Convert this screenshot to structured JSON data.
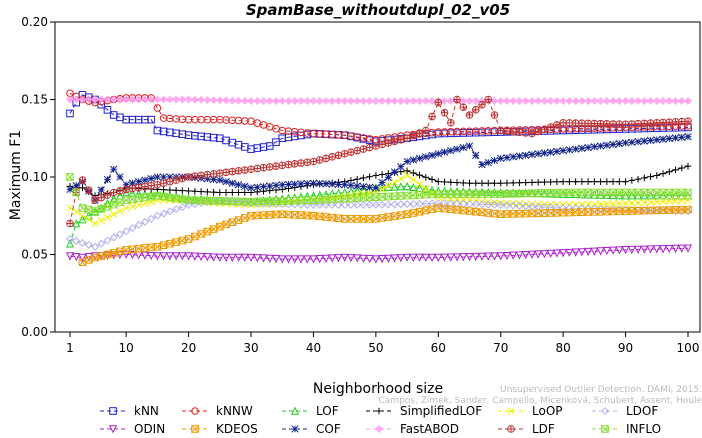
{
  "chart_data": {
    "type": "line",
    "title": "SpamBase_withoutdupl_02_v05",
    "xlabel": "Neighborhood size",
    "ylabel": "Maximum F1",
    "xlim": [
      1,
      100
    ],
    "ylim": [
      0,
      0.2
    ],
    "x_ticks": [
      "1",
      "10",
      "20",
      "30",
      "40",
      "50",
      "60",
      "70",
      "80",
      "90",
      "100"
    ],
    "y_ticks": [
      "0.00",
      "0.05",
      "0.10",
      "0.15",
      "0.20"
    ],
    "watermark_line1": "Unsupervised Outlier Detection. DAMI, 2015.",
    "watermark_line2": "Campos, Zimek, Sander, Campello, Micenková, Schubert, Assent, Houle",
    "legend_placement": "bottom",
    "grid": false,
    "series": [
      {
        "name": "kNN",
        "color": "#2222cc",
        "marker": "square",
        "points": [
          [
            1,
            0.141
          ],
          [
            2,
            0.148
          ],
          [
            3,
            0.153
          ],
          [
            5,
            0.15
          ],
          [
            8,
            0.14
          ],
          [
            10,
            0.137
          ],
          [
            14,
            0.137
          ],
          [
            15,
            0.13
          ],
          [
            20,
            0.127
          ],
          [
            25,
            0.125
          ],
          [
            30,
            0.118
          ],
          [
            33,
            0.12
          ],
          [
            35,
            0.125
          ],
          [
            40,
            0.128
          ],
          [
            45,
            0.127
          ],
          [
            50,
            0.123
          ],
          [
            55,
            0.125
          ],
          [
            60,
            0.128
          ],
          [
            70,
            0.129
          ],
          [
            80,
            0.13
          ],
          [
            90,
            0.131
          ],
          [
            100,
            0.132
          ]
        ]
      },
      {
        "name": "kNNW",
        "color": "#dd2222",
        "marker": "circle",
        "points": [
          [
            1,
            0.154
          ],
          [
            3,
            0.15
          ],
          [
            5,
            0.148
          ],
          [
            8,
            0.15
          ],
          [
            10,
            0.151
          ],
          [
            14,
            0.151
          ],
          [
            16,
            0.138
          ],
          [
            20,
            0.137
          ],
          [
            25,
            0.137
          ],
          [
            30,
            0.136
          ],
          [
            35,
            0.13
          ],
          [
            40,
            0.128
          ],
          [
            45,
            0.127
          ],
          [
            50,
            0.124
          ],
          [
            55,
            0.127
          ],
          [
            60,
            0.129
          ],
          [
            70,
            0.13
          ],
          [
            80,
            0.131
          ],
          [
            90,
            0.132
          ],
          [
            100,
            0.133
          ]
        ]
      },
      {
        "name": "LOF",
        "color": "#22cc22",
        "marker": "triangle-up",
        "points": [
          [
            1,
            0.057
          ],
          [
            2,
            0.07
          ],
          [
            4,
            0.075
          ],
          [
            6,
            0.08
          ],
          [
            8,
            0.086
          ],
          [
            10,
            0.09
          ],
          [
            15,
            0.088
          ],
          [
            20,
            0.086
          ],
          [
            25,
            0.085
          ],
          [
            30,
            0.084
          ],
          [
            35,
            0.086
          ],
          [
            40,
            0.088
          ],
          [
            45,
            0.09
          ],
          [
            50,
            0.093
          ],
          [
            55,
            0.094
          ],
          [
            60,
            0.091
          ],
          [
            70,
            0.09
          ],
          [
            80,
            0.089
          ],
          [
            90,
            0.088
          ],
          [
            100,
            0.088
          ]
        ]
      },
      {
        "name": "SimplifiedLOF",
        "color": "#000000",
        "marker": "plus",
        "points": [
          [
            1,
            0.094
          ],
          [
            3,
            0.093
          ],
          [
            5,
            0.088
          ],
          [
            8,
            0.09
          ],
          [
            10,
            0.093
          ],
          [
            15,
            0.092
          ],
          [
            20,
            0.091
          ],
          [
            25,
            0.09
          ],
          [
            30,
            0.09
          ],
          [
            35,
            0.092
          ],
          [
            40,
            0.095
          ],
          [
            45,
            0.097
          ],
          [
            50,
            0.101
          ],
          [
            55,
            0.104
          ],
          [
            60,
            0.097
          ],
          [
            65,
            0.096
          ],
          [
            70,
            0.096
          ],
          [
            80,
            0.097
          ],
          [
            90,
            0.097
          ],
          [
            95,
            0.101
          ],
          [
            100,
            0.107
          ]
        ]
      },
      {
        "name": "LoOP",
        "color": "#eeee00",
        "marker": "cross",
        "points": [
          [
            1,
            0.08
          ],
          [
            5,
            0.07
          ],
          [
            10,
            0.08
          ],
          [
            15,
            0.085
          ],
          [
            20,
            0.085
          ],
          [
            25,
            0.083
          ],
          [
            30,
            0.082
          ],
          [
            35,
            0.083
          ],
          [
            40,
            0.085
          ],
          [
            50,
            0.09
          ],
          [
            55,
            0.101
          ],
          [
            60,
            0.087
          ],
          [
            70,
            0.083
          ],
          [
            80,
            0.082
          ],
          [
            90,
            0.083
          ],
          [
            100,
            0.085
          ]
        ]
      },
      {
        "name": "LDOF",
        "color": "#b0b0ee",
        "marker": "diamond",
        "points": [
          [
            1,
            0.06
          ],
          [
            5,
            0.055
          ],
          [
            10,
            0.065
          ],
          [
            15,
            0.075
          ],
          [
            20,
            0.082
          ],
          [
            25,
            0.085
          ],
          [
            30,
            0.083
          ],
          [
            40,
            0.082
          ],
          [
            50,
            0.082
          ],
          [
            60,
            0.083
          ],
          [
            70,
            0.082
          ],
          [
            80,
            0.08
          ],
          [
            90,
            0.079
          ],
          [
            100,
            0.078
          ]
        ]
      },
      {
        "name": "ODIN",
        "color": "#aa22cc",
        "marker": "triangle-down",
        "points": [
          [
            1,
            0.049
          ],
          [
            3,
            0.048
          ],
          [
            5,
            0.049
          ],
          [
            10,
            0.05
          ],
          [
            15,
            0.049
          ],
          [
            20,
            0.049
          ],
          [
            25,
            0.048
          ],
          [
            30,
            0.048
          ],
          [
            35,
            0.047
          ],
          [
            40,
            0.047
          ],
          [
            45,
            0.048
          ],
          [
            50,
            0.047
          ],
          [
            55,
            0.048
          ],
          [
            60,
            0.048
          ],
          [
            70,
            0.049
          ],
          [
            80,
            0.051
          ],
          [
            90,
            0.053
          ],
          [
            100,
            0.054
          ]
        ]
      },
      {
        "name": "KDEOS",
        "color": "#ee9900",
        "marker": "x-square",
        "points": [
          [
            3,
            0.045
          ],
          [
            5,
            0.048
          ],
          [
            10,
            0.053
          ],
          [
            15,
            0.055
          ],
          [
            20,
            0.06
          ],
          [
            25,
            0.068
          ],
          [
            30,
            0.075
          ],
          [
            35,
            0.076
          ],
          [
            40,
            0.075
          ],
          [
            45,
            0.073
          ],
          [
            50,
            0.073
          ],
          [
            55,
            0.076
          ],
          [
            60,
            0.08
          ],
          [
            65,
            0.078
          ],
          [
            70,
            0.076
          ],
          [
            80,
            0.077
          ],
          [
            90,
            0.078
          ],
          [
            100,
            0.079
          ]
        ]
      },
      {
        "name": "COF",
        "color": "#112288",
        "marker": "asterisk",
        "points": [
          [
            1,
            0.092
          ],
          [
            3,
            0.097
          ],
          [
            5,
            0.085
          ],
          [
            8,
            0.105
          ],
          [
            10,
            0.095
          ],
          [
            15,
            0.1
          ],
          [
            20,
            0.1
          ],
          [
            25,
            0.098
          ],
          [
            30,
            0.093
          ],
          [
            35,
            0.095
          ],
          [
            40,
            0.096
          ],
          [
            45,
            0.095
          ],
          [
            50,
            0.093
          ],
          [
            55,
            0.11
          ],
          [
            60,
            0.115
          ],
          [
            65,
            0.12
          ],
          [
            67,
            0.108
          ],
          [
            70,
            0.112
          ],
          [
            80,
            0.117
          ],
          [
            90,
            0.122
          ],
          [
            100,
            0.126
          ]
        ]
      },
      {
        "name": "FastABOD",
        "color": "#ff99ee",
        "marker": "diamond-filled",
        "points": [
          [
            1,
            0.15
          ],
          [
            10,
            0.15
          ],
          [
            20,
            0.15
          ],
          [
            30,
            0.149
          ],
          [
            40,
            0.149
          ],
          [
            50,
            0.149
          ],
          [
            60,
            0.149
          ],
          [
            70,
            0.149
          ],
          [
            80,
            0.149
          ],
          [
            90,
            0.149
          ],
          [
            100,
            0.149
          ]
        ]
      },
      {
        "name": "LDF",
        "color": "#bb3333",
        "marker": "circle-plus",
        "points": [
          [
            1,
            0.07
          ],
          [
            2,
            0.09
          ],
          [
            3,
            0.098
          ],
          [
            5,
            0.085
          ],
          [
            8,
            0.09
          ],
          [
            10,
            0.092
          ],
          [
            15,
            0.095
          ],
          [
            20,
            0.1
          ],
          [
            30,
            0.105
          ],
          [
            40,
            0.11
          ],
          [
            50,
            0.12
          ],
          [
            55,
            0.125
          ],
          [
            58,
            0.13
          ],
          [
            60,
            0.148
          ],
          [
            62,
            0.135
          ],
          [
            63,
            0.15
          ],
          [
            65,
            0.14
          ],
          [
            68,
            0.15
          ],
          [
            70,
            0.13
          ],
          [
            75,
            0.128
          ],
          [
            80,
            0.135
          ],
          [
            90,
            0.134
          ],
          [
            100,
            0.136
          ]
        ]
      },
      {
        "name": "INFLO",
        "color": "#88dd33",
        "marker": "x-square",
        "points": [
          [
            1,
            0.1
          ],
          [
            3,
            0.08
          ],
          [
            5,
            0.078
          ],
          [
            10,
            0.085
          ],
          [
            15,
            0.088
          ],
          [
            20,
            0.085
          ],
          [
            30,
            0.084
          ],
          [
            40,
            0.085
          ],
          [
            50,
            0.087
          ],
          [
            60,
            0.089
          ],
          [
            70,
            0.089
          ],
          [
            80,
            0.09
          ],
          [
            90,
            0.09
          ],
          [
            100,
            0.09
          ]
        ]
      }
    ],
    "legend_rows": [
      [
        "kNN",
        "kNNW",
        "LOF",
        "SimplifiedLOF",
        "LoOP",
        "LDOF"
      ],
      [
        "ODIN",
        "KDEOS",
        "COF",
        "FastABOD",
        "LDF",
        "INFLO"
      ]
    ]
  }
}
